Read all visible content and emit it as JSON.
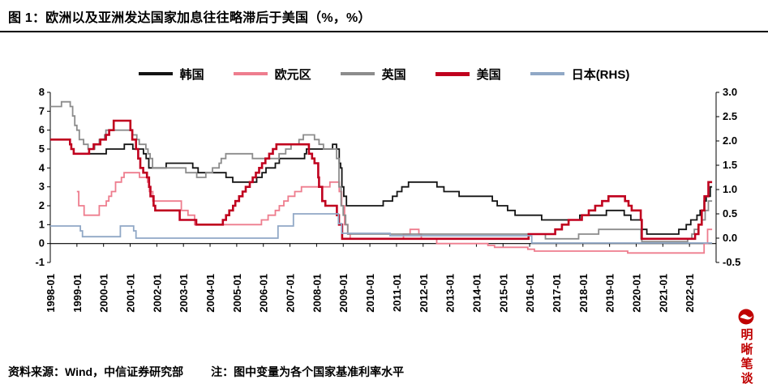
{
  "header": {
    "title": "图 1：欧洲以及亚洲发达国家加息往往略滞后于美国（%，%）"
  },
  "footer": {
    "source": "资料来源：Wind，中信证券研究部",
    "note": "注：图中变量为各个国家基准利率水平"
  },
  "watermark": {
    "text": "明晰笔谈",
    "color": "#C00000"
  },
  "chart_data": {
    "type": "line",
    "title": "欧洲以及亚洲发达国家加息往往略滞后于美国（%，%）",
    "grid": false,
    "legend_position": "top",
    "x_axis": {
      "range": [
        1998,
        2023
      ],
      "data_end": 2022.85,
      "labels": [
        "1998-01",
        "1999-01",
        "2000-01",
        "2001-01",
        "2002-01",
        "2003-01",
        "2004-01",
        "2005-01",
        "2006-01",
        "2007-01",
        "2008-01",
        "2009-01",
        "2010-01",
        "2011-01",
        "2012-01",
        "2013-01",
        "2014-01",
        "2015-01",
        "2016-01",
        "2017-01",
        "2018-01",
        "2019-01",
        "2020-01",
        "2021-01",
        "2022-01"
      ]
    },
    "y_axis_left": {
      "range": [
        -1,
        8
      ],
      "ticks": [
        8,
        7,
        6,
        5,
        4,
        3,
        2,
        1,
        0,
        -1
      ]
    },
    "y_axis_right": {
      "range": [
        -0.5,
        3.0
      ],
      "ticks": [
        "3.0",
        "2.5",
        "2.0",
        "1.5",
        "1.0",
        "0.5",
        "0.0",
        "-0.5"
      ]
    },
    "series": [
      {
        "id": "korea",
        "name": "韩国",
        "color": "#141414",
        "axis": "left",
        "width": 1.8,
        "step_points": [
          [
            1999.35,
            4.75
          ],
          [
            2000.1,
            5.0
          ],
          [
            2000.78,
            5.25
          ],
          [
            2001.1,
            5.0
          ],
          [
            2001.5,
            4.75
          ],
          [
            2001.6,
            4.5
          ],
          [
            2001.7,
            4.0
          ],
          [
            2002.35,
            4.25
          ],
          [
            2003.35,
            4.0
          ],
          [
            2003.55,
            3.75
          ],
          [
            2004.6,
            3.5
          ],
          [
            2004.85,
            3.25
          ],
          [
            2005.75,
            3.5
          ],
          [
            2005.95,
            3.75
          ],
          [
            2006.1,
            4.0
          ],
          [
            2006.45,
            4.25
          ],
          [
            2006.6,
            4.5
          ],
          [
            2007.55,
            4.75
          ],
          [
            2007.62,
            5.0
          ],
          [
            2008.6,
            5.25
          ],
          [
            2008.75,
            5.0
          ],
          [
            2008.85,
            4.25
          ],
          [
            2008.9,
            4.0
          ],
          [
            2008.95,
            3.0
          ],
          [
            2009.02,
            2.5
          ],
          [
            2009.12,
            2.0
          ],
          [
            2010.5,
            2.25
          ],
          [
            2010.85,
            2.5
          ],
          [
            2011.02,
            2.75
          ],
          [
            2011.2,
            3.0
          ],
          [
            2011.45,
            3.25
          ],
          [
            2012.52,
            3.0
          ],
          [
            2012.78,
            2.75
          ],
          [
            2013.35,
            2.5
          ],
          [
            2014.6,
            2.25
          ],
          [
            2014.78,
            2.0
          ],
          [
            2015.17,
            1.75
          ],
          [
            2015.45,
            1.5
          ],
          [
            2016.45,
            1.25
          ],
          [
            2017.88,
            1.5
          ],
          [
            2018.88,
            1.75
          ],
          [
            2019.55,
            1.5
          ],
          [
            2019.8,
            1.25
          ],
          [
            2020.2,
            0.75
          ],
          [
            2020.4,
            0.5
          ],
          [
            2021.6,
            0.75
          ],
          [
            2021.88,
            1.0
          ],
          [
            2022.05,
            1.25
          ],
          [
            2022.28,
            1.5
          ],
          [
            2022.4,
            1.75
          ],
          [
            2022.55,
            2.25
          ],
          [
            2022.63,
            2.5
          ],
          [
            2022.78,
            3.0
          ]
        ]
      },
      {
        "id": "eurozone",
        "name": "欧元区",
        "color": "#EE7D8E",
        "axis": "left",
        "width": 1.8,
        "step_points": [
          [
            1999.0,
            2.75
          ],
          [
            1999.07,
            2.0
          ],
          [
            1999.27,
            1.5
          ],
          [
            1999.84,
            2.0
          ],
          [
            2000.1,
            2.25
          ],
          [
            2000.2,
            2.5
          ],
          [
            2000.3,
            2.75
          ],
          [
            2000.45,
            3.25
          ],
          [
            2000.67,
            3.5
          ],
          [
            2000.77,
            3.75
          ],
          [
            2001.35,
            3.5
          ],
          [
            2001.65,
            3.25
          ],
          [
            2001.72,
            2.75
          ],
          [
            2001.85,
            2.25
          ],
          [
            2002.92,
            1.75
          ],
          [
            2003.17,
            1.5
          ],
          [
            2003.42,
            1.0
          ],
          [
            2005.93,
            1.25
          ],
          [
            2006.18,
            1.5
          ],
          [
            2006.45,
            1.75
          ],
          [
            2006.6,
            2.0
          ],
          [
            2006.77,
            2.25
          ],
          [
            2006.93,
            2.5
          ],
          [
            2007.18,
            2.75
          ],
          [
            2007.43,
            3.0
          ],
          [
            2008.5,
            3.25
          ],
          [
            2008.85,
            2.75
          ],
          [
            2008.94,
            2.0
          ],
          [
            2009.05,
            1.0
          ],
          [
            2009.17,
            0.5
          ],
          [
            2009.26,
            0.25
          ],
          [
            2011.26,
            0.5
          ],
          [
            2011.51,
            0.75
          ],
          [
            2011.84,
            0.5
          ],
          [
            2011.93,
            0.25
          ],
          [
            2012.51,
            0.0
          ],
          [
            2014.43,
            -0.1
          ],
          [
            2014.68,
            -0.2
          ],
          [
            2015.93,
            -0.3
          ],
          [
            2016.18,
            -0.4
          ],
          [
            2019.68,
            -0.5
          ],
          [
            2022.55,
            0.0
          ],
          [
            2022.68,
            0.75
          ]
        ]
      },
      {
        "id": "uk",
        "name": "英国",
        "color": "#8C8C8C",
        "axis": "left",
        "width": 1.8,
        "step_points": [
          [
            1998.0,
            7.25
          ],
          [
            1998.42,
            7.5
          ],
          [
            1998.75,
            7.25
          ],
          [
            1998.84,
            6.75
          ],
          [
            1998.92,
            6.25
          ],
          [
            1999.0,
            6.0
          ],
          [
            1999.09,
            5.5
          ],
          [
            1999.25,
            5.25
          ],
          [
            1999.42,
            5.0
          ],
          [
            1999.67,
            5.25
          ],
          [
            1999.84,
            5.5
          ],
          [
            2000.04,
            5.75
          ],
          [
            2000.09,
            6.0
          ],
          [
            2001.09,
            5.75
          ],
          [
            2001.25,
            5.5
          ],
          [
            2001.34,
            5.25
          ],
          [
            2001.59,
            5.0
          ],
          [
            2001.67,
            4.75
          ],
          [
            2001.75,
            4.5
          ],
          [
            2001.84,
            4.0
          ],
          [
            2003.09,
            3.75
          ],
          [
            2003.5,
            3.5
          ],
          [
            2003.84,
            3.75
          ],
          [
            2004.09,
            4.0
          ],
          [
            2004.34,
            4.25
          ],
          [
            2004.42,
            4.5
          ],
          [
            2004.59,
            4.75
          ],
          [
            2005.59,
            4.5
          ],
          [
            2006.59,
            4.75
          ],
          [
            2006.84,
            5.0
          ],
          [
            2007.04,
            5.25
          ],
          [
            2007.34,
            5.5
          ],
          [
            2007.5,
            5.75
          ],
          [
            2007.92,
            5.5
          ],
          [
            2008.09,
            5.25
          ],
          [
            2008.26,
            5.0
          ],
          [
            2008.75,
            4.5
          ],
          [
            2008.84,
            3.0
          ],
          [
            2008.92,
            2.0
          ],
          [
            2009.0,
            1.5
          ],
          [
            2009.09,
            1.0
          ],
          [
            2009.17,
            0.5
          ],
          [
            2016.59,
            0.25
          ],
          [
            2017.84,
            0.5
          ],
          [
            2018.59,
            0.75
          ],
          [
            2020.18,
            0.25
          ],
          [
            2020.21,
            0.1
          ],
          [
            2021.93,
            0.25
          ],
          [
            2022.09,
            0.5
          ],
          [
            2022.18,
            0.75
          ],
          [
            2022.34,
            1.0
          ],
          [
            2022.46,
            1.25
          ],
          [
            2022.59,
            1.75
          ],
          [
            2022.71,
            2.25
          ]
        ]
      },
      {
        "id": "us",
        "name": "美国",
        "color": "#C0001E",
        "axis": "left",
        "width": 2.6,
        "step_points": [
          [
            1998.0,
            5.5
          ],
          [
            1998.74,
            5.25
          ],
          [
            1998.79,
            5.0
          ],
          [
            1998.88,
            4.75
          ],
          [
            1999.46,
            5.0
          ],
          [
            1999.63,
            5.25
          ],
          [
            1999.88,
            5.5
          ],
          [
            2000.09,
            5.75
          ],
          [
            2000.21,
            6.0
          ],
          [
            2000.38,
            6.5
          ],
          [
            2001.01,
            6.0
          ],
          [
            2001.08,
            5.5
          ],
          [
            2001.22,
            5.0
          ],
          [
            2001.3,
            4.5
          ],
          [
            2001.38,
            4.0
          ],
          [
            2001.49,
            3.75
          ],
          [
            2001.63,
            3.5
          ],
          [
            2001.71,
            3.0
          ],
          [
            2001.76,
            2.5
          ],
          [
            2001.88,
            2.0
          ],
          [
            2001.94,
            1.75
          ],
          [
            2002.86,
            1.25
          ],
          [
            2003.48,
            1.0
          ],
          [
            2004.48,
            1.25
          ],
          [
            2004.6,
            1.5
          ],
          [
            2004.72,
            1.75
          ],
          [
            2004.86,
            2.0
          ],
          [
            2004.95,
            2.25
          ],
          [
            2005.09,
            2.5
          ],
          [
            2005.22,
            2.75
          ],
          [
            2005.34,
            3.0
          ],
          [
            2005.49,
            3.25
          ],
          [
            2005.6,
            3.5
          ],
          [
            2005.72,
            3.75
          ],
          [
            2005.84,
            4.0
          ],
          [
            2005.95,
            4.25
          ],
          [
            2006.08,
            4.5
          ],
          [
            2006.22,
            4.75
          ],
          [
            2006.36,
            5.0
          ],
          [
            2006.49,
            5.25
          ],
          [
            2007.71,
            4.75
          ],
          [
            2007.83,
            4.5
          ],
          [
            2007.92,
            4.25
          ],
          [
            2008.06,
            3.5
          ],
          [
            2008.09,
            3.0
          ],
          [
            2008.21,
            2.25
          ],
          [
            2008.33,
            2.0
          ],
          [
            2008.76,
            1.5
          ],
          [
            2008.84,
            1.0
          ],
          [
            2008.96,
            0.25
          ],
          [
            2015.96,
            0.5
          ],
          [
            2016.96,
            0.75
          ],
          [
            2017.21,
            1.0
          ],
          [
            2017.46,
            1.25
          ],
          [
            2017.96,
            1.5
          ],
          [
            2018.22,
            1.75
          ],
          [
            2018.46,
            2.0
          ],
          [
            2018.72,
            2.25
          ],
          [
            2018.96,
            2.5
          ],
          [
            2019.58,
            2.25
          ],
          [
            2019.71,
            2.0
          ],
          [
            2019.83,
            1.75
          ],
          [
            2020.17,
            1.25
          ],
          [
            2020.21,
            0.25
          ],
          [
            2022.21,
            0.5
          ],
          [
            2022.34,
            1.0
          ],
          [
            2022.46,
            1.75
          ],
          [
            2022.56,
            2.5
          ],
          [
            2022.71,
            3.25
          ]
        ]
      },
      {
        "id": "japan",
        "name": "日本(RHS)",
        "color": "#90A8C6",
        "axis": "right",
        "width": 1.8,
        "step_points": [
          [
            1998.0,
            0.25
          ],
          [
            1999.13,
            0.15
          ],
          [
            1999.21,
            0.03
          ],
          [
            2000.63,
            0.25
          ],
          [
            2001.13,
            0.15
          ],
          [
            2001.22,
            0.0
          ],
          [
            2006.55,
            0.25
          ],
          [
            2007.13,
            0.5
          ],
          [
            2008.82,
            0.3
          ],
          [
            2008.94,
            0.1
          ],
          [
            2010.76,
            0.05
          ],
          [
            2016.08,
            -0.1
          ]
        ]
      }
    ]
  }
}
